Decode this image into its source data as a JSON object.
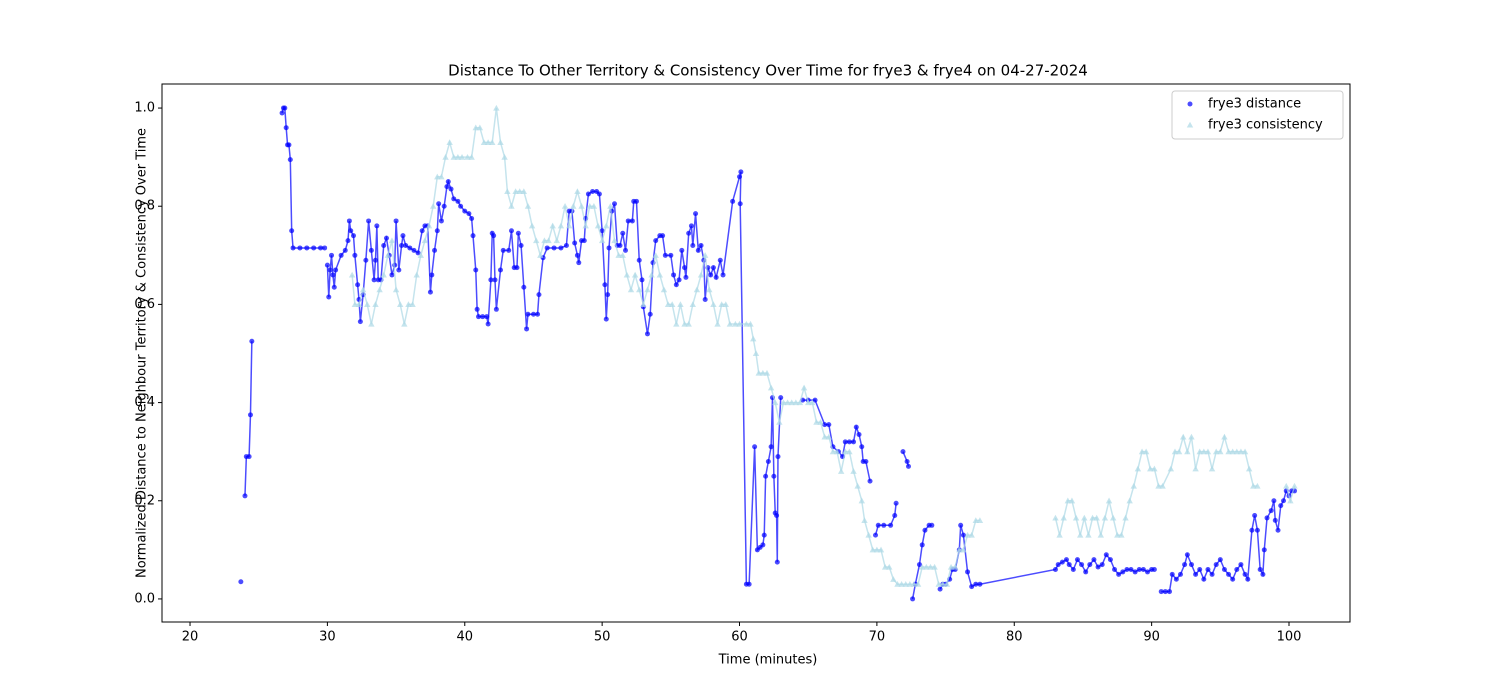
{
  "chart_data": {
    "type": "line",
    "markers": true,
    "title": "Distance To Other Territory & Consistency Over Time for frye3 & frye4 on 04-27-2024",
    "xlabel": "Time (minutes)",
    "ylabel": "Normalized Distance to Neighbour Territory & Consistency Over Time",
    "xlim": [
      17.96,
      104.44
    ],
    "xticks": [
      20,
      30,
      40,
      50,
      60,
      70,
      80,
      90,
      100
    ],
    "ylim": [
      -0.047,
      1.049
    ],
    "yticks": [
      {
        "value": 0,
        "label": "0.0"
      },
      0.2,
      0.4,
      0.6,
      0.8,
      {
        "value": 1,
        "label": "1.0"
      }
    ],
    "legend": "upper right",
    "series": [
      {
        "name": "frye3 distance",
        "color": "blue",
        "marker": "circle",
        "x": [
          23.7,
          null,
          24.0,
          24.1,
          24.3,
          24.4,
          24.5,
          null,
          26.7,
          26.8,
          26.9,
          27.0,
          27.1,
          27.2,
          27.3,
          27.4,
          27.5,
          28.0,
          28.5,
          29.0,
          29.5,
          29.8,
          null,
          30.0,
          30.1,
          30.2,
          30.3,
          30.4,
          30.5,
          30.6,
          31.0,
          31.3,
          31.5,
          31.6,
          31.7,
          31.9,
          32.0,
          32.2,
          32.3,
          32.4,
          32.6,
          32.8,
          33.0,
          33.2,
          33.4,
          33.5,
          33.6,
          33.7,
          33.9,
          34.1,
          34.3,
          34.5,
          34.7,
          34.9,
          35.0,
          35.2,
          35.4,
          35.5,
          35.7,
          36.0,
          36.3,
          36.6,
          36.9,
          37.1,
          37.3,
          37.5,
          37.6,
          37.8,
          38.0,
          38.1,
          38.3,
          38.5,
          38.7,
          38.8,
          39.0,
          39.2,
          39.5,
          39.7,
          40.0,
          40.3,
          40.5,
          40.6,
          40.8,
          40.9,
          41.0,
          41.3,
          41.6,
          41.7,
          41.9,
          42.0,
          42.1,
          42.2,
          42.3,
          42.6,
          42.8,
          43.2,
          43.4,
          43.6,
          43.8,
          43.9,
          44.1,
          44.3,
          44.5,
          44.6,
          45.0,
          45.3,
          45.4,
          45.7,
          46.0,
          46.5,
          47.0,
          47.4,
          47.6,
          47.8,
          48.0,
          48.2,
          48.3,
          48.5,
          48.7,
          48.8,
          49.0,
          49.3,
          49.6,
          49.8,
          50.0,
          50.2,
          50.3,
          50.4,
          50.5,
          50.7,
          50.9,
          51.1,
          51.3,
          51.5,
          51.7,
          51.9,
          52.2,
          52.3,
          52.5,
          52.7,
          52.9,
          53.0,
          53.3,
          53.5,
          53.7,
          53.9,
          54.2,
          54.4,
          54.6,
          55.0,
          55.2,
          55.4,
          55.6,
          55.8,
          56.0,
          56.1,
          56.3,
          56.5,
          56.6,
          56.8,
          57.0,
          57.2,
          57.4,
          57.5,
          57.7,
          57.9,
          58.1,
          58.3,
          58.6,
          58.8,
          59.5,
          60.0,
          60.1,
          60.05,
          60.5,
          60.7,
          61.1,
          61.3,
          61.5,
          61.7,
          61.8,
          61.9,
          62.1,
          62.3,
          62.4,
          62.5,
          62.6,
          62.7,
          62.75,
          62.8,
          63.0,
          null,
          64.6,
          65.0,
          65.5,
          66.2,
          66.5,
          66.8,
          67.2,
          67.5,
          67.7,
          68.0,
          68.3,
          68.5,
          68.7,
          68.9,
          69.0,
          69.2,
          69.5,
          null,
          69.9,
          70.1,
          70.5,
          71.0,
          71.3,
          71.4,
          null,
          71.9,
          72.2,
          72.3,
          null,
          72.6,
          72.8,
          73.1,
          73.3,
          73.5,
          73.8,
          74.0,
          null,
          74.6,
          74.8,
          75.0,
          75.3,
          75.5,
          75.7,
          76.0,
          76.1,
          76.3,
          76.6,
          76.9,
          77.2,
          77.5,
          83.0,
          83.2,
          83.5,
          83.8,
          84.0,
          84.3,
          84.6,
          84.9,
          85.2,
          85.5,
          85.8,
          86.1,
          86.4,
          86.7,
          87.0,
          87.3,
          87.6,
          87.9,
          88.2,
          88.5,
          88.8,
          89.1,
          89.4,
          89.7,
          90.0,
          90.2,
          null,
          90.7,
          91.0,
          91.3,
          91.5,
          91.8,
          92.1,
          92.4,
          92.6,
          92.9,
          93.2,
          93.5,
          93.8,
          94.1,
          94.4,
          94.7,
          95.0,
          95.3,
          95.6,
          95.9,
          96.2,
          96.5,
          96.8,
          97.0,
          97.3,
          97.5,
          97.7,
          97.9,
          98.1,
          98.2,
          98.4,
          98.7,
          98.9,
          99.0,
          99.2,
          99.4,
          99.6,
          99.8,
          100.0,
          100.2,
          100.4
        ],
        "values": [
          0.035,
          null,
          0.21,
          0.29,
          0.29,
          0.375,
          0.525,
          null,
          0.99,
          1.0,
          1.0,
          0.96,
          0.925,
          0.925,
          0.895,
          0.75,
          0.715,
          0.715,
          0.715,
          0.715,
          0.715,
          0.715,
          null,
          0.68,
          0.615,
          0.67,
          0.7,
          0.66,
          0.635,
          0.67,
          0.7,
          0.71,
          0.73,
          0.77,
          0.75,
          0.74,
          0.7,
          0.64,
          0.61,
          0.565,
          0.62,
          0.69,
          0.77,
          0.71,
          0.65,
          0.69,
          0.76,
          0.65,
          0.65,
          0.72,
          0.735,
          0.7,
          0.66,
          0.68,
          0.77,
          0.67,
          0.72,
          0.74,
          0.72,
          0.715,
          0.71,
          0.705,
          0.75,
          0.76,
          0.76,
          0.625,
          0.66,
          0.71,
          0.75,
          0.805,
          0.77,
          0.8,
          0.84,
          0.85,
          0.835,
          0.815,
          0.81,
          0.8,
          0.79,
          0.785,
          0.775,
          0.74,
          0.67,
          0.59,
          0.575,
          0.575,
          0.575,
          0.56,
          0.65,
          0.745,
          0.74,
          0.65,
          0.59,
          0.67,
          0.71,
          0.71,
          0.75,
          0.675,
          0.675,
          0.745,
          0.72,
          0.635,
          0.55,
          0.58,
          0.58,
          0.58,
          0.62,
          0.695,
          0.715,
          0.715,
          0.715,
          0.72,
          0.79,
          0.79,
          0.725,
          0.7,
          0.685,
          0.73,
          0.73,
          0.775,
          0.825,
          0.83,
          0.83,
          0.825,
          0.75,
          0.64,
          0.57,
          0.62,
          0.715,
          0.79,
          0.805,
          0.72,
          0.72,
          0.745,
          0.71,
          0.77,
          0.77,
          0.81,
          0.81,
          0.69,
          0.65,
          0.595,
          0.54,
          0.58,
          0.685,
          0.73,
          0.74,
          0.74,
          0.7,
          0.7,
          0.66,
          0.64,
          0.65,
          0.71,
          0.675,
          0.655,
          0.745,
          0.76,
          0.72,
          0.785,
          0.71,
          0.72,
          0.69,
          0.61,
          0.675,
          0.66,
          0.675,
          0.655,
          0.69,
          0.66,
          0.81,
          0.86,
          0.87,
          0.805,
          0.03,
          0.03,
          0.31,
          0.1,
          0.105,
          0.11,
          0.13,
          0.25,
          0.28,
          0.31,
          0.41,
          0.25,
          0.175,
          0.17,
          0.075,
          0.29,
          0.41,
          null,
          0.405,
          0.405,
          0.405,
          0.355,
          0.355,
          0.31,
          0.3,
          0.29,
          0.32,
          0.32,
          0.32,
          0.35,
          0.335,
          0.31,
          0.28,
          0.28,
          0.24,
          null,
          0.13,
          0.15,
          0.15,
          0.15,
          0.17,
          0.195,
          null,
          0.3,
          0.28,
          0.27,
          null,
          0.0,
          0.03,
          0.07,
          0.11,
          0.14,
          0.15,
          0.15,
          null,
          0.02,
          0.03,
          0.03,
          0.04,
          0.06,
          0.06,
          0.1,
          0.15,
          0.13,
          0.055,
          0.025,
          0.03,
          0.03,
          0.06,
          0.07,
          0.075,
          0.08,
          0.07,
          0.06,
          0.08,
          0.07,
          0.055,
          0.07,
          0.08,
          0.065,
          0.07,
          0.09,
          0.08,
          0.06,
          0.05,
          0.055,
          0.06,
          0.06,
          0.055,
          0.06,
          0.06,
          0.055,
          0.06,
          0.06,
          null,
          0.015,
          0.015,
          0.015,
          0.05,
          0.04,
          0.05,
          0.07,
          0.09,
          0.07,
          0.05,
          0.06,
          0.04,
          0.06,
          0.05,
          0.07,
          0.08,
          0.06,
          0.05,
          0.04,
          0.06,
          0.07,
          0.05,
          0.04,
          0.14,
          0.17,
          0.14,
          0.06,
          0.05,
          0.1,
          0.165,
          0.18,
          0.2,
          0.16,
          0.14,
          0.19,
          0.2,
          0.22,
          0.21,
          0.22,
          0.22
        ]
      },
      {
        "name": "frye3 consistency",
        "color": "lightblue",
        "marker": "triangle",
        "x": [
          31.8,
          32.0,
          32.3,
          32.6,
          32.9,
          33.2,
          33.5,
          33.8,
          34.1,
          34.4,
          34.7,
          35.0,
          35.3,
          35.6,
          35.9,
          36.2,
          36.5,
          36.8,
          37.1,
          37.4,
          37.7,
          38.0,
          38.3,
          38.6,
          38.9,
          39.2,
          39.5,
          39.8,
          40.2,
          40.5,
          40.8,
          41.1,
          41.4,
          41.7,
          42.0,
          42.3,
          42.6,
          42.9,
          43.1,
          43.4,
          43.7,
          44.0,
          44.3,
          44.6,
          44.9,
          45.2,
          45.5,
          45.8,
          46.1,
          46.4,
          46.7,
          47.0,
          47.3,
          47.6,
          47.9,
          48.2,
          48.5,
          48.8,
          49.1,
          49.4,
          49.7,
          50.0,
          50.3,
          50.6,
          50.9,
          51.2,
          51.5,
          51.8,
          52.1,
          52.4,
          52.7,
          53.0,
          53.3,
          53.6,
          53.9,
          54.2,
          54.5,
          54.8,
          55.1,
          55.4,
          55.7,
          56.0,
          56.3,
          56.6,
          56.9,
          57.2,
          57.5,
          57.8,
          58.1,
          58.4,
          58.7,
          59.0,
          59.3,
          59.7,
          60.0,
          60.5,
          60.8,
          61.0,
          61.2,
          61.4,
          61.7,
          62.0,
          62.3,
          62.6,
          62.9,
          63.2,
          63.5,
          63.8,
          64.1,
          64.4,
          64.7,
          65.0,
          65.3,
          65.6,
          65.9,
          66.2,
          66.5,
          66.8,
          67.1,
          67.4,
          67.7,
          68.0,
          68.3,
          68.6,
          68.9,
          69.1,
          69.4,
          69.7,
          70.0,
          70.3,
          70.6,
          70.9,
          71.2,
          71.5,
          71.8,
          72.1,
          72.4,
          72.7,
          73.0,
          73.3,
          73.6,
          73.9,
          74.2,
          74.5,
          74.8,
          75.1,
          75.4,
          75.7,
          76.0,
          76.3,
          76.6,
          76.9,
          77.2,
          77.5,
          null,
          83.0,
          83.3,
          83.6,
          83.9,
          84.2,
          84.5,
          84.8,
          85.1,
          85.4,
          85.7,
          86.0,
          86.3,
          86.6,
          86.9,
          87.2,
          87.5,
          87.8,
          88.1,
          88.4,
          88.7,
          89.0,
          89.3,
          89.6,
          89.9,
          90.2,
          90.5,
          90.8,
          91.4,
          91.7,
          92.0,
          92.3,
          92.6,
          92.9,
          93.2,
          93.5,
          93.8,
          94.1,
          94.4,
          94.7,
          95.0,
          95.3,
          95.6,
          95.9,
          96.2,
          96.5,
          96.8,
          97.1,
          97.4,
          97.7,
          null,
          99.8,
          100.1,
          100.4
        ],
        "values": [
          0.66,
          0.6,
          0.6,
          0.63,
          0.6,
          0.56,
          0.6,
          0.63,
          0.66,
          0.7,
          0.73,
          0.63,
          0.6,
          0.56,
          0.6,
          0.6,
          0.66,
          0.7,
          0.73,
          0.76,
          0.8,
          0.86,
          0.86,
          0.9,
          0.93,
          0.9,
          0.9,
          0.9,
          0.9,
          0.9,
          0.96,
          0.96,
          0.93,
          0.93,
          0.93,
          1.0,
          0.93,
          0.9,
          0.83,
          0.8,
          0.83,
          0.83,
          0.83,
          0.8,
          0.76,
          0.73,
          0.7,
          0.73,
          0.73,
          0.76,
          0.73,
          0.76,
          0.8,
          0.76,
          0.8,
          0.83,
          0.8,
          0.76,
          0.8,
          0.8,
          0.76,
          0.73,
          0.76,
          0.8,
          0.73,
          0.7,
          0.7,
          0.66,
          0.63,
          0.66,
          0.63,
          0.6,
          0.63,
          0.66,
          0.7,
          0.66,
          0.63,
          0.6,
          0.6,
          0.56,
          0.6,
          0.56,
          0.56,
          0.6,
          0.63,
          0.66,
          0.7,
          0.63,
          0.6,
          0.56,
          0.6,
          0.6,
          0.56,
          0.56,
          0.56,
          0.56,
          0.56,
          0.53,
          0.5,
          0.46,
          0.46,
          0.46,
          0.43,
          0.4,
          0.36,
          0.4,
          0.4,
          0.4,
          0.4,
          0.4,
          0.43,
          0.4,
          0.4,
          0.36,
          0.36,
          0.33,
          0.33,
          0.3,
          0.3,
          0.26,
          0.3,
          0.3,
          0.26,
          0.23,
          0.2,
          0.16,
          0.13,
          0.1,
          0.1,
          0.1,
          0.065,
          0.065,
          0.04,
          0.03,
          0.03,
          0.03,
          0.03,
          0.03,
          0.03,
          0.065,
          0.065,
          0.065,
          0.065,
          0.03,
          0.03,
          0.03,
          0.065,
          0.065,
          0.1,
          0.1,
          0.13,
          0.13,
          0.16,
          0.16,
          null,
          0.165,
          0.13,
          0.165,
          0.2,
          0.2,
          0.165,
          0.13,
          0.165,
          0.13,
          0.165,
          0.165,
          0.13,
          0.165,
          0.2,
          0.165,
          0.13,
          0.13,
          0.165,
          0.2,
          0.23,
          0.265,
          0.3,
          0.3,
          0.265,
          0.265,
          0.23,
          0.23,
          0.265,
          0.3,
          0.3,
          0.33,
          0.3,
          0.33,
          0.265,
          0.3,
          0.3,
          0.3,
          0.265,
          0.3,
          0.3,
          0.33,
          0.3,
          0.3,
          0.3,
          0.3,
          0.3,
          0.265,
          0.23,
          0.23,
          null,
          0.23,
          0.2,
          0.23
        ]
      }
    ]
  }
}
